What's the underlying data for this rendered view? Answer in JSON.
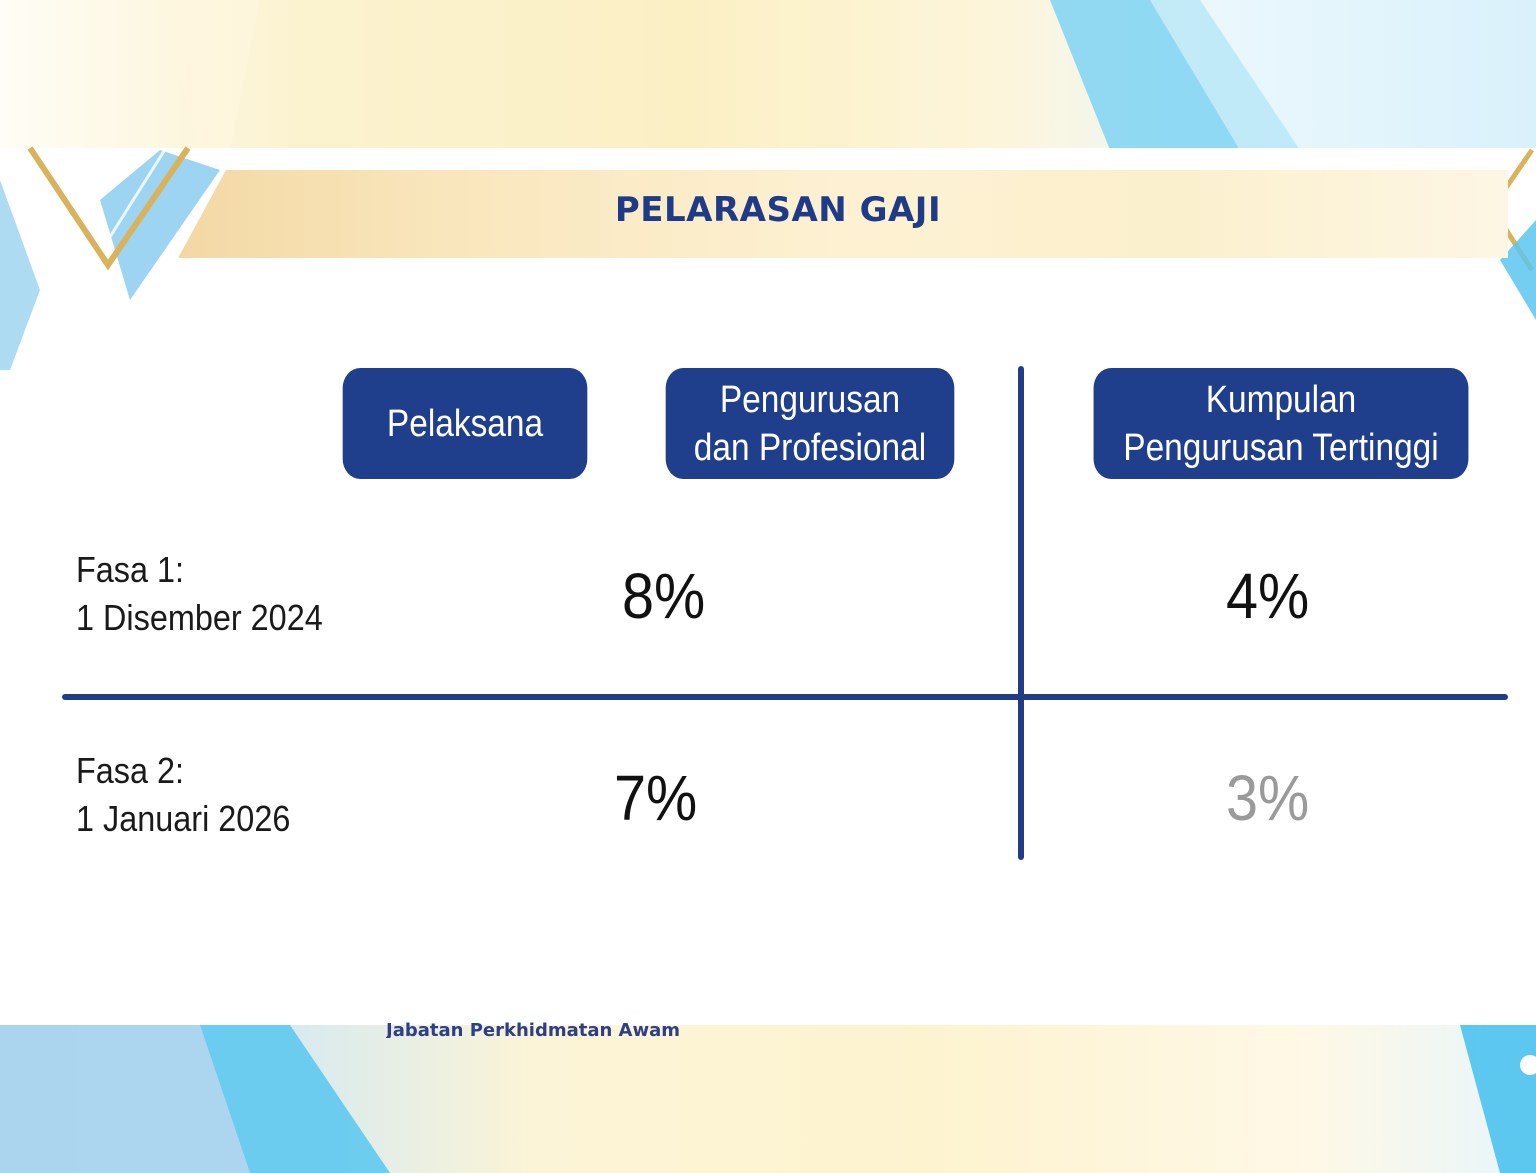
{
  "slide": {
    "title": "PELARASAN GAJI",
    "columns": [
      {
        "label_line1": "Pelaksana",
        "label_line2": ""
      },
      {
        "label_line1": "Pengurusan",
        "label_line2": "dan Profesional"
      },
      {
        "label_line1": "Kumpulan",
        "label_line2": "Pengurusan Tertinggi"
      }
    ],
    "rows": [
      {
        "phase": "Fasa 1:",
        "date": "1 Disember 2024",
        "value_group_a": "8%",
        "value_group_b": "4%"
      },
      {
        "phase": "Fasa 2:",
        "date": "1 Januari 2026",
        "value_group_a": "7%",
        "value_group_b": "3%"
      }
    ],
    "footer": "Jabatan Perkhidmatan Awam"
  },
  "colors": {
    "primary_navy": "#1f3f8c",
    "title_text": "#1f3b87",
    "muted_value": "#9a9a9a"
  },
  "icons": {
    "corner_left": "chevron-v-icon",
    "corner_right": "chevron-left-icon"
  }
}
